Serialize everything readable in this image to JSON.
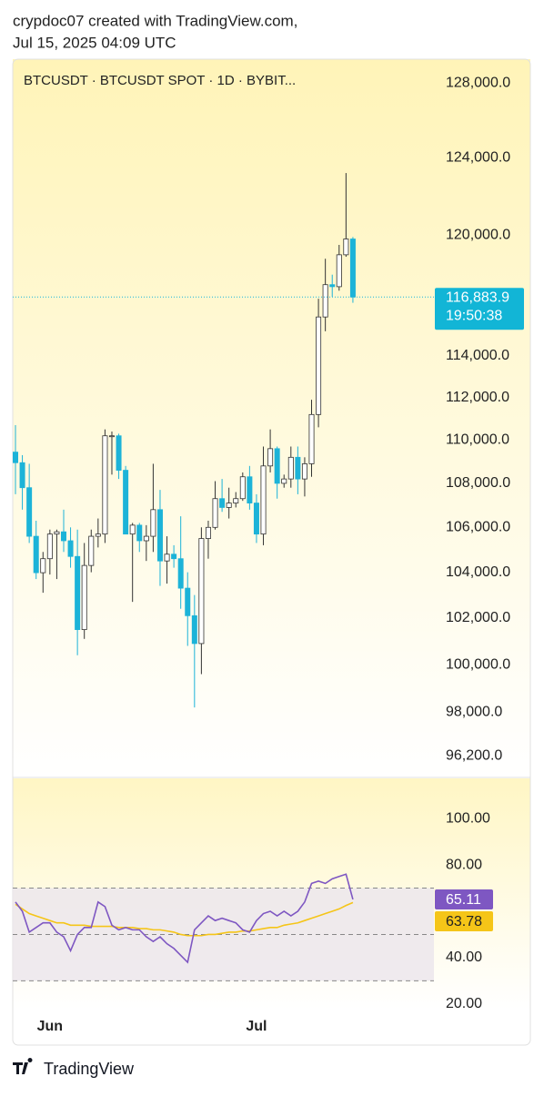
{
  "header": {
    "line1": "crypdoc07 created with TradingView.com,",
    "line2": "Jul 15, 2025 04:09 UTC"
  },
  "footer": {
    "brand": "TradingView"
  },
  "chart_data": [
    {
      "type": "candlestick",
      "title": "BTCUSDT · BTCUSDT SPOT · 1D · BYBIT...",
      "categories": [
        null,
        null,
        null,
        null,
        null,
        "Jun",
        null,
        null,
        null,
        null,
        null,
        null,
        null,
        null,
        null,
        null,
        null,
        null,
        null,
        null,
        null,
        null,
        null,
        null,
        null,
        null,
        null,
        null,
        null,
        null,
        null,
        null,
        null,
        null,
        null,
        "Jul",
        null,
        null,
        null,
        null,
        null,
        null,
        null,
        null,
        null,
        null,
        null,
        null,
        null,
        null
      ],
      "open": [
        109440,
        108950,
        107800,
        105600,
        103980,
        104600,
        105700,
        105800,
        105400,
        104700,
        101500,
        104300,
        105600,
        105700,
        110200,
        110200,
        108600,
        105700,
        106100,
        105400,
        105600,
        106800,
        104500,
        104800,
        104600,
        103300,
        102100,
        100900,
        105500,
        106000,
        107300,
        106900,
        107100,
        107300,
        108300,
        107100,
        105700,
        108800,
        109600,
        108000,
        108200,
        109200,
        108200,
        108900,
        111200,
        115900,
        117500,
        117400,
        119000,
        119800
      ],
      "high": [
        110700,
        109300,
        108900,
        106300,
        104900,
        105900,
        105900,
        106800,
        106000,
        105900,
        105300,
        105900,
        106400,
        110500,
        110400,
        110300,
        108800,
        106200,
        106200,
        106100,
        108900,
        107700,
        105600,
        105200,
        106500,
        104000,
        103000,
        106000,
        106300,
        108100,
        108200,
        107800,
        107600,
        108500,
        108800,
        107500,
        109700,
        110500,
        109700,
        108400,
        109700,
        109700,
        109200,
        111900,
        116800,
        118800,
        118000,
        119500,
        123200,
        119900
      ],
      "low": [
        107500,
        106800,
        105300,
        103700,
        103100,
        103900,
        103700,
        104900,
        104200,
        100400,
        101100,
        104000,
        105100,
        105300,
        108400,
        108200,
        105700,
        102700,
        104900,
        104500,
        104900,
        103400,
        103500,
        104200,
        102400,
        100800,
        98200,
        99600,
        104600,
        105900,
        106700,
        106400,
        106900,
        107200,
        106800,
        105300,
        105200,
        108500,
        107300,
        107800,
        107800,
        107500,
        107400,
        108300,
        110600,
        115200,
        116900,
        117200,
        118900,
        116600
      ],
      "close": [
        108950,
        107800,
        105600,
        103980,
        104600,
        105700,
        105800,
        105400,
        104700,
        101500,
        104300,
        105600,
        105700,
        110200,
        110200,
        108600,
        105700,
        106100,
        105400,
        105600,
        106800,
        104500,
        104800,
        104600,
        103300,
        102100,
        100900,
        105500,
        106000,
        107300,
        106900,
        107100,
        107300,
        108300,
        107100,
        105700,
        108800,
        109600,
        108000,
        108200,
        109200,
        108200,
        108900,
        111200,
        115900,
        117500,
        117400,
        119000,
        119800,
        116883.9
      ],
      "last_close_label": "116,883.9",
      "countdown": "19:50:38",
      "up_color": "#ffffff",
      "down_color": "#1cb3d8",
      "log_scale": true,
      "ylim": [
        95400,
        129300
      ],
      "yticks": [
        {
          "value": 128000,
          "label": "128,000.0"
        },
        {
          "value": 124000,
          "label": "124,000.0"
        },
        {
          "value": 120000,
          "label": "120,000.0"
        },
        {
          "value": 114000,
          "label": "114,000.0"
        },
        {
          "value": 112000,
          "label": "112,000.0"
        },
        {
          "value": 110000,
          "label": "110,000.0"
        },
        {
          "value": 108000,
          "label": "108,000.0"
        },
        {
          "value": 106000,
          "label": "106,000.0"
        },
        {
          "value": 104000,
          "label": "104,000.0"
        },
        {
          "value": 102000,
          "label": "102,000.0"
        },
        {
          "value": 100000,
          "label": "100,000.0"
        },
        {
          "value": 98000,
          "label": "98,000.0"
        },
        {
          "value": 96200,
          "label": "96,200.0"
        }
      ]
    },
    {
      "type": "line",
      "series": [
        {
          "color": "#7e57c2",
          "values": [
            64,
            60,
            51,
            53,
            55,
            55,
            51,
            49,
            43,
            50,
            53,
            53,
            64,
            62,
            54,
            52,
            53,
            52,
            52,
            49,
            47,
            49,
            46,
            44,
            41,
            38,
            52,
            55,
            58,
            56,
            57,
            56,
            55,
            52,
            51,
            56,
            59,
            60,
            58,
            60,
            58,
            60,
            64,
            72,
            73,
            72,
            74,
            75,
            76,
            65.11
          ]
        },
        {
          "color": "#f5c518",
          "values": [
            63,
            61,
            59,
            58,
            57,
            56,
            55,
            55,
            54,
            54,
            54,
            53.5,
            53.5,
            53.5,
            53.5,
            53,
            53,
            53,
            52.5,
            52.5,
            52,
            52,
            51.5,
            51,
            50,
            49.5,
            49.5,
            49.5,
            50,
            50,
            50.5,
            51,
            51,
            51.5,
            51.5,
            52,
            52.5,
            53,
            53,
            54,
            54.5,
            55,
            56,
            57,
            58,
            59,
            60,
            61,
            62.5,
            63.78
          ]
        }
      ],
      "band_lines": [
        70,
        50,
        30
      ],
      "ylim": [
        18,
        117.3
      ],
      "yticks": [
        {
          "value": 100,
          "label": "100.00"
        },
        {
          "value": 80,
          "label": "80.00"
        },
        {
          "value": 40,
          "label": "40.00"
        },
        {
          "value": 20,
          "label": "20.00"
        }
      ]
    }
  ]
}
